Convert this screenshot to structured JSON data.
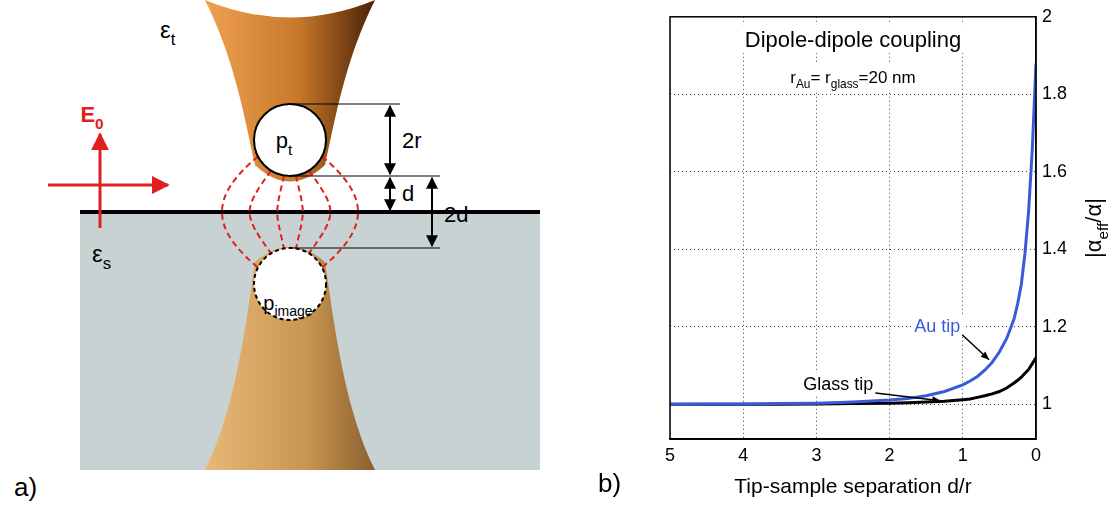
{
  "diagram": {
    "panel_label": "a)",
    "tip_permittivity": [
      "ε",
      "t"
    ],
    "sample_permittivity": [
      "ε",
      "s"
    ],
    "field": [
      "E",
      "0"
    ],
    "tip_dipole": [
      "p",
      "t"
    ],
    "image_dipole": [
      "p",
      "image"
    ],
    "tip_diameter": "2r",
    "separation": "d",
    "image_separation": "2d"
  },
  "chart_data": {
    "type": "line",
    "panel_label": "b)",
    "title": "Dipole-dipole coupling",
    "annotation": [
      "r",
      "Au",
      "= r",
      "glass",
      "=20 nm"
    ],
    "x_label": "Tip-sample separation d/r",
    "y_label": [
      "|α",
      "eff",
      "/α|"
    ],
    "x": [
      5,
      4.5,
      4,
      3.5,
      3,
      2.5,
      2,
      1.75,
      1.5,
      1.25,
      1,
      0.9,
      0.8,
      0.7,
      0.6,
      0.5,
      0.4,
      0.3,
      0.25,
      0.2,
      0.15,
      0.1,
      0.05,
      0
    ],
    "series": [
      {
        "name": "Au tip",
        "color": "#3a5bd9",
        "values": [
          1.0,
          1.001,
          1.001,
          1.002,
          1.003,
          1.006,
          1.011,
          1.015,
          1.022,
          1.033,
          1.05,
          1.06,
          1.072,
          1.088,
          1.108,
          1.135,
          1.17,
          1.22,
          1.26,
          1.31,
          1.39,
          1.5,
          1.66,
          1.88
        ]
      },
      {
        "name": "Glass tip",
        "color": "#000000",
        "values": [
          1.0,
          1.0,
          1.0,
          1.0,
          1.001,
          1.002,
          1.003,
          1.004,
          1.006,
          1.008,
          1.012,
          1.014,
          1.018,
          1.022,
          1.027,
          1.033,
          1.042,
          1.055,
          1.062,
          1.07,
          1.08,
          1.09,
          1.105,
          1.12
        ]
      }
    ],
    "xlim": [
      5,
      0
    ],
    "ylim": [
      0.91,
      2
    ],
    "xticks": [
      5,
      4,
      3,
      2,
      1,
      0
    ],
    "yticks": [
      1,
      1.2,
      1.4,
      1.6,
      1.8,
      2
    ],
    "grid": true
  }
}
